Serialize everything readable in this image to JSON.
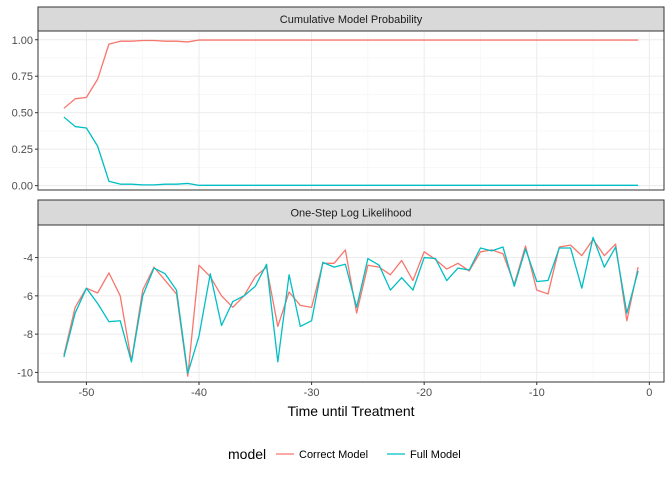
{
  "chart_data": {
    "type": "line",
    "facets": [
      {
        "strip_label": "Cumulative Model Probability",
        "ylim": [
          -0.03,
          1.06
        ],
        "yticks": [
          0,
          0.25,
          0.5,
          0.75,
          1
        ],
        "ytick_labels": [
          "0.00",
          "0.25",
          "0.50",
          "0.75",
          "1.00"
        ],
        "series": [
          {
            "name": "Correct Model",
            "x": [
              -52,
              -51,
              -50,
              -49,
              -48,
              -47,
              -46,
              -45,
              -44,
              -43,
              -42,
              -41,
              -40,
              -39,
              -38,
              -37,
              -36,
              -35,
              -34,
              -33,
              -32,
              -31,
              -30,
              -29,
              -28,
              -27,
              -26,
              -25,
              -24,
              -23,
              -22,
              -21,
              -20,
              -19,
              -18,
              -17,
              -16,
              -15,
              -14,
              -13,
              -12,
              -11,
              -10,
              -9,
              -8,
              -7,
              -6,
              -5,
              -4,
              -3,
              -2,
              -1
            ],
            "y": [
              0.53,
              0.595,
              0.605,
              0.73,
              0.97,
              0.99,
              0.99,
              0.995,
              0.995,
              0.99,
              0.99,
              0.985,
              0.998,
              0.998,
              0.998,
              0.998,
              0.998,
              0.998,
              0.998,
              0.998,
              0.998,
              0.998,
              0.998,
              0.998,
              0.998,
              0.998,
              0.998,
              0.998,
              0.998,
              0.998,
              0.998,
              0.998,
              0.998,
              0.998,
              0.998,
              0.998,
              0.998,
              0.998,
              0.998,
              0.998,
              0.998,
              0.998,
              0.998,
              0.998,
              0.998,
              0.998,
              0.998,
              0.998,
              0.998,
              0.998,
              0.998,
              0.998
            ]
          },
          {
            "name": "Full Model",
            "x": [
              -52,
              -51,
              -50,
              -49,
              -48,
              -47,
              -46,
              -45,
              -44,
              -43,
              -42,
              -41,
              -40,
              -39,
              -38,
              -37,
              -36,
              -35,
              -34,
              -33,
              -32,
              -31,
              -30,
              -29,
              -28,
              -27,
              -26,
              -25,
              -24,
              -23,
              -22,
              -21,
              -20,
              -19,
              -18,
              -17,
              -16,
              -15,
              -14,
              -13,
              -12,
              -11,
              -10,
              -9,
              -8,
              -7,
              -6,
              -5,
              -4,
              -3,
              -2,
              -1
            ],
            "y": [
              0.47,
              0.405,
              0.395,
              0.27,
              0.03,
              0.01,
              0.01,
              0.005,
              0.005,
              0.01,
              0.01,
              0.015,
              0.002,
              0.002,
              0.002,
              0.002,
              0.002,
              0.002,
              0.002,
              0.002,
              0.002,
              0.002,
              0.002,
              0.002,
              0.002,
              0.002,
              0.002,
              0.002,
              0.002,
              0.002,
              0.002,
              0.002,
              0.002,
              0.002,
              0.002,
              0.002,
              0.002,
              0.002,
              0.002,
              0.002,
              0.002,
              0.002,
              0.002,
              0.002,
              0.002,
              0.002,
              0.002,
              0.002,
              0.002,
              0.002,
              0.002,
              0.002
            ]
          }
        ]
      },
      {
        "strip_label": "One-Step Log Likelihood",
        "ylim": [
          -10.5,
          -2.3
        ],
        "yticks": [
          -10,
          -8,
          -6,
          -4
        ],
        "ytick_labels": [
          "-10",
          "-8",
          "-6",
          "-4"
        ],
        "series": [
          {
            "name": "Correct Model",
            "x": [
              -52,
              -51,
              -50,
              -49,
              -48,
              -47,
              -46,
              -45,
              -44,
              -43,
              -42,
              -41,
              -40,
              -39,
              -38,
              -37,
              -36,
              -35,
              -34,
              -33,
              -32,
              -31,
              -30,
              -29,
              -28,
              -27,
              -26,
              -25,
              -24,
              -23,
              -22,
              -21,
              -20,
              -19,
              -18,
              -17,
              -16,
              -15,
              -14,
              -13,
              -12,
              -11,
              -10,
              -9,
              -8,
              -7,
              -6,
              -5,
              -4,
              -3,
              -2,
              -1
            ],
            "y": [
              -9.1,
              -6.6,
              -5.6,
              -5.85,
              -4.8,
              -6.0,
              -9.4,
              -5.7,
              -4.5,
              -5.2,
              -5.9,
              -10.2,
              -4.4,
              -5.0,
              -6.0,
              -6.6,
              -6.0,
              -5.0,
              -4.5,
              -7.6,
              -5.8,
              -6.5,
              -6.6,
              -4.3,
              -4.3,
              -3.6,
              -6.9,
              -4.4,
              -4.5,
              -4.9,
              -4.15,
              -5.2,
              -3.7,
              -4.1,
              -4.6,
              -4.3,
              -4.7,
              -3.7,
              -3.6,
              -3.8,
              -5.4,
              -3.4,
              -5.7,
              -5.9,
              -3.45,
              -3.35,
              -3.9,
              -3.05,
              -3.9,
              -3.3,
              -7.3,
              -4.5
            ]
          },
          {
            "name": "Full Model",
            "x": [
              -52,
              -51,
              -50,
              -49,
              -48,
              -47,
              -46,
              -45,
              -44,
              -43,
              -42,
              -41,
              -40,
              -39,
              -38,
              -37,
              -36,
              -35,
              -34,
              -33,
              -32,
              -31,
              -30,
              -29,
              -28,
              -27,
              -26,
              -25,
              -24,
              -23,
              -22,
              -21,
              -20,
              -19,
              -18,
              -17,
              -16,
              -15,
              -14,
              -13,
              -12,
              -11,
              -10,
              -9,
              -8,
              -7,
              -6,
              -5,
              -4,
              -3,
              -2,
              -1
            ],
            "y": [
              -9.2,
              -6.9,
              -5.6,
              -6.4,
              -7.35,
              -7.3,
              -9.45,
              -6.0,
              -4.55,
              -4.85,
              -5.7,
              -10.05,
              -8.1,
              -4.85,
              -7.55,
              -6.3,
              -6.0,
              -5.5,
              -4.35,
              -9.45,
              -4.9,
              -7.6,
              -7.3,
              -4.25,
              -4.5,
              -4.35,
              -6.6,
              -4.05,
              -4.4,
              -5.7,
              -5.05,
              -5.7,
              -4.0,
              -4.05,
              -5.2,
              -4.55,
              -4.65,
              -3.5,
              -3.65,
              -3.45,
              -5.5,
              -3.55,
              -5.25,
              -5.2,
              -3.5,
              -3.5,
              -5.6,
              -2.95,
              -4.5,
              -3.45,
              -6.9,
              -4.7
            ]
          }
        ]
      }
    ],
    "xlim": [
      -54.3,
      1.3
    ],
    "xticks": [
      -50,
      -40,
      -30,
      -20,
      -10,
      0
    ],
    "xtick_labels": [
      "-50",
      "-40",
      "-30",
      "-20",
      "-10",
      "0"
    ],
    "xlabel": "Time until Treatment",
    "ylabel": "",
    "grid": true,
    "legend": {
      "title": "model",
      "position": "bottom",
      "entries": [
        "Correct Model",
        "Full Model"
      ]
    },
    "colors": {
      "Correct Model": "#F8766D",
      "Full Model": "#00BFC4",
      "strip_fill": "#D9D9D9",
      "panel_border": "#333333",
      "grid_major": "#EBEBEB",
      "grid_minor": "#F5F5F5"
    }
  }
}
